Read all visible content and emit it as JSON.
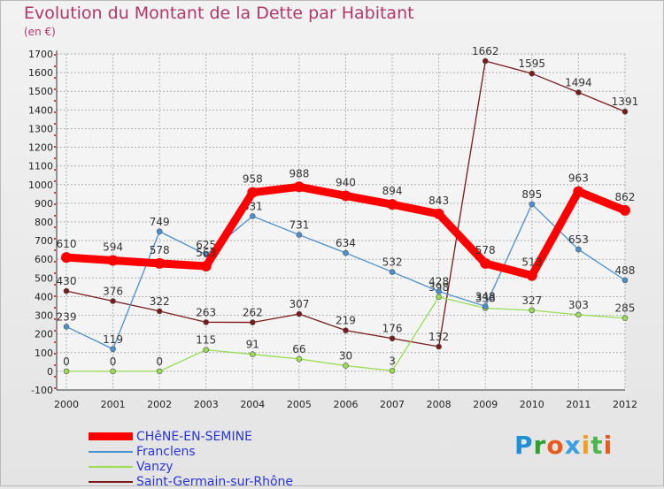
{
  "title": "Evolution du Montant de la Dette par Habitant",
  "subtitle": "(en €)",
  "logo": "Proxiti",
  "colors": {
    "background": "#e8e8e8",
    "title": "#b3366b",
    "legend_text": "#2b34d8",
    "grid": "#b0b0b0"
  },
  "chart_data": {
    "type": "line",
    "x": [
      "2000",
      "2001",
      "2002",
      "2003",
      "2004",
      "2005",
      "2006",
      "2007",
      "2008",
      "2009",
      "2010",
      "2011",
      "2012"
    ],
    "ylim": [
      -100,
      1700
    ],
    "yticks": [
      -100,
      0,
      100,
      200,
      300,
      400,
      500,
      600,
      700,
      800,
      900,
      1000,
      1100,
      1200,
      1300,
      1400,
      1500,
      1600,
      1700
    ],
    "grid": true,
    "legend_position": "bottom-left",
    "series": [
      {
        "name": "CHêNE-EN-SEMINE",
        "color": "#ff0000",
        "values": [
          610,
          594,
          578,
          563,
          958,
          988,
          940,
          894,
          843,
          578,
          513,
          963,
          862
        ],
        "labels": [
          "610",
          "594",
          "578",
          "563",
          "958",
          "988",
          "940",
          "894",
          "843",
          "578",
          "513",
          "963",
          "862"
        ]
      },
      {
        "name": "Franclens",
        "color": "#4a8fd0",
        "values": [
          239,
          119,
          749,
          625,
          831,
          731,
          634,
          532,
          428,
          348,
          895,
          653,
          488
        ],
        "labels": [
          "239",
          "119",
          "749",
          "625",
          "831",
          "731",
          "634",
          "532",
          "428",
          "348",
          "895",
          "653",
          "488"
        ]
      },
      {
        "name": "Vanzy",
        "color": "#99dd55",
        "values": [
          0,
          0,
          0,
          115,
          91,
          66,
          30,
          3,
          398,
          338,
          327,
          303,
          285
        ],
        "labels": [
          "0",
          "0",
          "0",
          "115",
          "91",
          "66",
          "30",
          "3",
          "398",
          "338",
          "327",
          "303",
          "285"
        ]
      },
      {
        "name": "Saint-Germain-sur-Rhône",
        "color": "#7a1a1a",
        "values": [
          430,
          376,
          322,
          263,
          262,
          307,
          219,
          176,
          132,
          1662,
          1595,
          1494,
          1391
        ],
        "labels": [
          "430",
          "376",
          "322",
          "263",
          "262",
          "307",
          "219",
          "176",
          "132",
          "1662",
          "1595",
          "1494",
          "1391"
        ]
      }
    ]
  }
}
